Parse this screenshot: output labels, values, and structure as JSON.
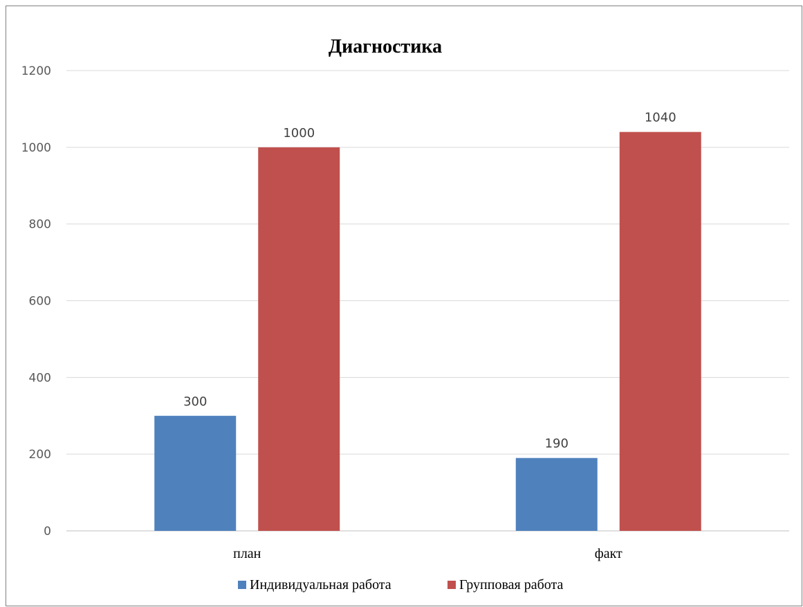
{
  "chart_data": {
    "type": "bar",
    "title": "Диагностика",
    "categories": [
      "план",
      "факт"
    ],
    "series": [
      {
        "name": "Индивидуальная работа",
        "values": [
          300,
          190
        ],
        "color": "#4F81BD"
      },
      {
        "name": "Групповая работа",
        "values": [
          1000,
          1040
        ],
        "color": "#C0504D"
      }
    ],
    "ylim": [
      0,
      1200
    ],
    "yticks": [
      0,
      200,
      400,
      600,
      800,
      1000,
      1200
    ],
    "grid": true,
    "legend_position": "bottom",
    "data_labels": true
  }
}
